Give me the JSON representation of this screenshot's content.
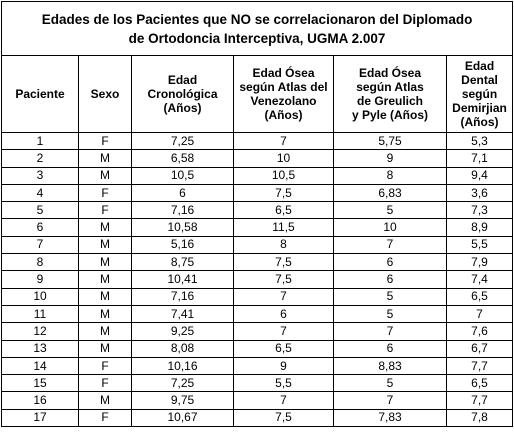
{
  "title": [
    "Edades de los Pacientes que NO se correlacionaron del Diplomado",
    "de Ortodoncia Interceptiva, UGMA 2.007"
  ],
  "table": {
    "headers": [
      [
        "Paciente"
      ],
      [
        "Sexo"
      ],
      [
        "Edad",
        "Cronológica",
        "(Años)"
      ],
      [
        "Edad Ósea",
        "según Atlas del",
        "Venezolano",
        "(Años)"
      ],
      [
        "Edad Ósea",
        "según Atlas",
        "de Greulich",
        "y Pyle (Años)"
      ],
      [
        "Edad Dental",
        "según",
        "Demirjian",
        "(Años)"
      ]
    ],
    "rows": [
      [
        "1",
        "F",
        "7,25",
        "7",
        "5,75",
        "5,3"
      ],
      [
        "2",
        "M",
        "6,58",
        "10",
        "9",
        "7,1"
      ],
      [
        "3",
        "M",
        "10,5",
        "10,5",
        "8",
        "9,4"
      ],
      [
        "4",
        "F",
        "6",
        "7,5",
        "6,83",
        "3,6"
      ],
      [
        "5",
        "F",
        "7,16",
        "6,5",
        "5",
        "7,3"
      ],
      [
        "6",
        "M",
        "10,58",
        "11,5",
        "10",
        "8,9"
      ],
      [
        "7",
        "M",
        "5,16",
        "8",
        "7",
        "5,5"
      ],
      [
        "8",
        "M",
        "8,75",
        "7,5",
        "6",
        "7,9"
      ],
      [
        "9",
        "M",
        "10,41",
        "7,5",
        "6",
        "7,4"
      ],
      [
        "10",
        "M",
        "7,16",
        "7",
        "5",
        "6,5"
      ],
      [
        "11",
        "M",
        "7,41",
        "6",
        "5",
        "7"
      ],
      [
        "12",
        "M",
        "9,25",
        "7",
        "7",
        "7,6"
      ],
      [
        "13",
        "M",
        "8,08",
        "6,5",
        "6",
        "6,7"
      ],
      [
        "14",
        "F",
        "10,16",
        "9",
        "8,83",
        "7,7"
      ],
      [
        "15",
        "F",
        "7,25",
        "5,5",
        "5",
        "6,5"
      ],
      [
        "16",
        "M",
        "9,75",
        "7",
        "7",
        "7,7"
      ],
      [
        "17",
        "F",
        "10,67",
        "7,5",
        "7,83",
        "7,8"
      ]
    ]
  }
}
